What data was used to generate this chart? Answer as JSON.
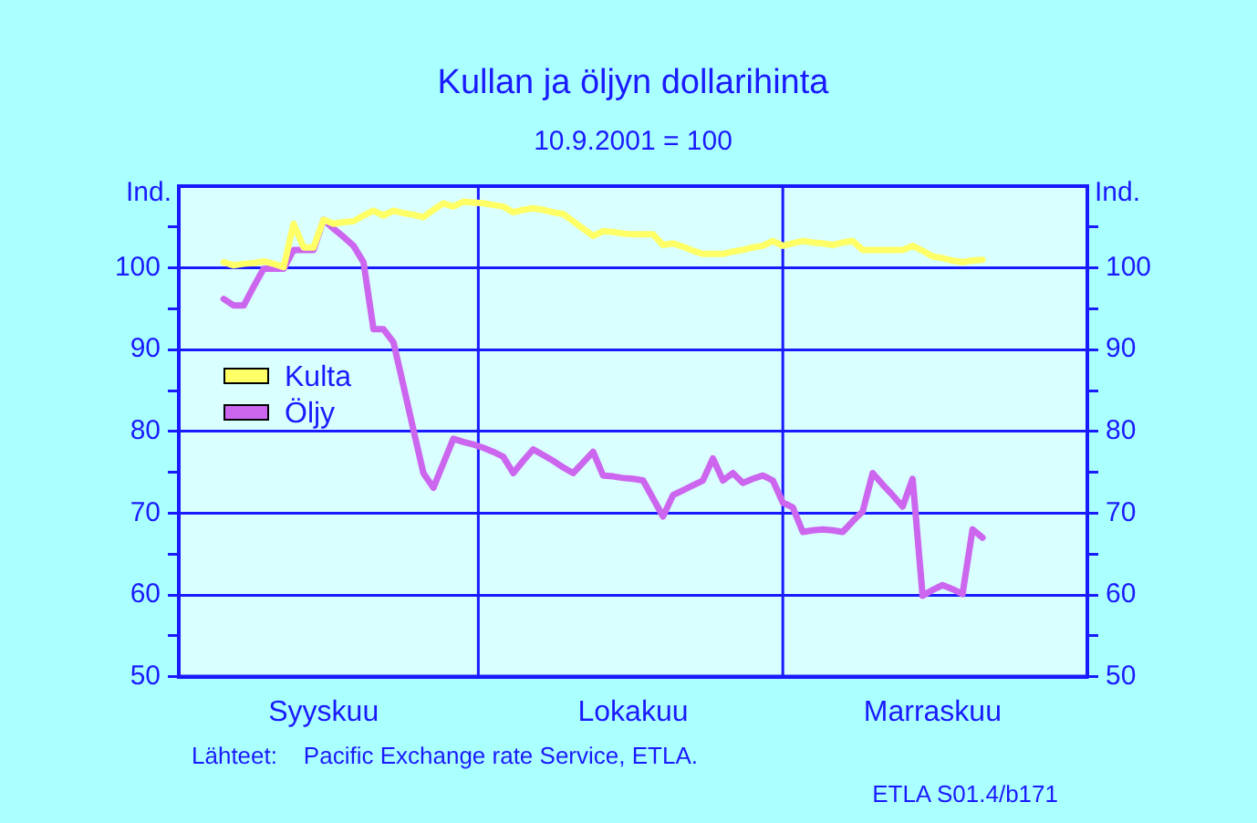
{
  "chart_data": {
    "type": "line",
    "title": "Kullan ja öljyn dollarihinta",
    "subtitle": "10.9.2001 = 100",
    "ylabel": "Ind.",
    "y2label": "Ind.",
    "categories": [
      null,
      null,
      null,
      null,
      null,
      null,
      null,
      null,
      null,
      null,
      null,
      null,
      null,
      null,
      "Syyskuu",
      null,
      null,
      null,
      null,
      null,
      null,
      null,
      null,
      null,
      null,
      null,
      null,
      null,
      null,
      null,
      null,
      null,
      null,
      null,
      null,
      null,
      null,
      null,
      null,
      null,
      null,
      null,
      null,
      null,
      null,
      "Lokakuu",
      null,
      null,
      null,
      null,
      null,
      null,
      null,
      null,
      null,
      null,
      null,
      null,
      null,
      null,
      null,
      null,
      null,
      null,
      null,
      null,
      null,
      null,
      null,
      null,
      null,
      null,
      null,
      null,
      null,
      "Marraskuu",
      null,
      null,
      null,
      null,
      null,
      null,
      null,
      null,
      null,
      null,
      null,
      null,
      null,
      null,
      null
    ],
    "ylim": [
      50,
      110
    ],
    "yticks": [
      50,
      {
        "value": 55,
        "label": null
      },
      60,
      {
        "value": 65,
        "label": null
      },
      70,
      {
        "value": 75,
        "label": null
      },
      80,
      {
        "value": 85,
        "label": null
      },
      90,
      {
        "value": 95,
        "label": null
      },
      100,
      {
        "value": 105,
        "label": null
      }
    ],
    "y2lim": [
      50,
      110
    ],
    "y2ticks": [
      50,
      {
        "value": 55,
        "label": null
      },
      60,
      {
        "value": 65,
        "label": null
      },
      70,
      {
        "value": 75,
        "label": null
      },
      80,
      {
        "value": 85,
        "label": null
      },
      90,
      {
        "value": 95,
        "label": null
      },
      100,
      {
        "value": 105,
        "label": null
      }
    ],
    "grid": true,
    "legend": "left",
    "marker": "none",
    "series": [
      {
        "name": "Kulta",
        "color": "#ffff66",
        "values": [
          null,
          null,
          null,
          null,
          100.7,
          100.3,
          100.5,
          100.6,
          100.8,
          100.5,
          100.1,
          105.4,
          102.5,
          102.5,
          105.9,
          105.4,
          105.6,
          105.7,
          106.4,
          107,
          106.4,
          107,
          106.7,
          106.5,
          106.2,
          107.1,
          107.9,
          107.5,
          108.1,
          108,
          107.9,
          107.7,
          107.5,
          106.8,
          107.1,
          107.3,
          107.1,
          106.8,
          106.6,
          105.7,
          104.8,
          103.9,
          104.5,
          104.4,
          104.2,
          104.1,
          104.1,
          104.1,
          102.8,
          103,
          102.6,
          102.1,
          101.7,
          101.7,
          101.7,
          102,
          102.2,
          102.5,
          102.7,
          103.3,
          102.7,
          103,
          103.3,
          103.1,
          103,
          102.8,
          103.1,
          103.3,
          102.2,
          102.2,
          102.2,
          102.2,
          102.2,
          102.7,
          102.1,
          101.4,
          101.2,
          100.9,
          100.7,
          100.9,
          101,
          null,
          null,
          null,
          null,
          null,
          null,
          null,
          null,
          null,
          null
        ]
      },
      {
        "name": "Öljy",
        "color": "#cc66ee",
        "values": [
          null,
          null,
          null,
          null,
          96.2,
          95.4,
          95.4,
          97.7,
          99.9,
          99.9,
          99.9,
          102.2,
          102.2,
          102.2,
          105.9,
          104.8,
          103.8,
          102.7,
          100.7,
          92.5,
          92.5,
          90.9,
          85.6,
          80.2,
          74.9,
          73.1,
          76.1,
          79.1,
          78.7,
          78.4,
          78,
          77.5,
          76.9,
          74.9,
          76.4,
          77.8,
          77.1,
          76.4,
          75.6,
          74.9,
          76.2,
          77.5,
          74.6,
          74.5,
          74.3,
          74.2,
          74,
          71.8,
          69.6,
          72.2,
          72.8,
          73.4,
          74,
          76.7,
          74,
          74.9,
          73.7,
          74.2,
          74.6,
          74,
          71.3,
          70.7,
          67.7,
          67.9,
          68,
          67.9,
          67.7,
          69,
          70.2,
          74.9,
          73.5,
          72.2,
          70.8,
          74.2,
          59.9,
          60.6,
          61.2,
          60.7,
          60.1,
          68,
          67,
          null,
          null,
          null,
          null,
          null,
          null,
          null,
          null,
          null,
          null
        ]
      }
    ],
    "annotations": [
      "Lähteet:    Pacific Exchange rate Service, ETLA.",
      "ETLA S01.4/b171"
    ]
  }
}
